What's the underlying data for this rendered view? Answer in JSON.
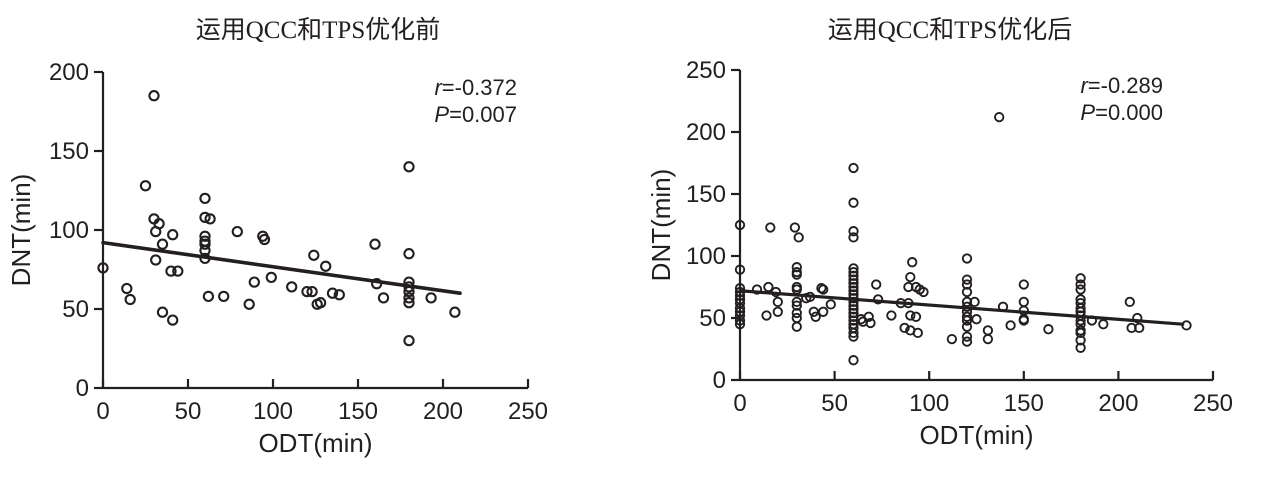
{
  "figure": {
    "background": "#ffffff",
    "ink_color": "#231f20"
  },
  "chart_data": [
    {
      "type": "scatter",
      "title": "运用QCC和TPS优化前",
      "xlabel": "ODT(min)",
      "ylabel": "DNT(min)",
      "xlim": [
        0,
        250
      ],
      "ylim": [
        0,
        200
      ],
      "xticks": [
        0,
        50,
        100,
        150,
        200,
        250
      ],
      "yticks": [
        0,
        50,
        100,
        150,
        200
      ],
      "grid": false,
      "legend_position": "none",
      "marker": "open-circle",
      "annotation": {
        "line1": "r=-0.372",
        "line2": "P=0.007"
      },
      "regression_line": {
        "x": [
          0,
          210
        ],
        "y": [
          92,
          60
        ]
      },
      "points": [
        [
          0,
          76
        ],
        [
          14,
          63
        ],
        [
          16,
          56
        ],
        [
          25,
          128
        ],
        [
          30,
          185
        ],
        [
          30,
          107
        ],
        [
          31,
          99
        ],
        [
          31,
          81
        ],
        [
          33,
          104
        ],
        [
          35,
          91
        ],
        [
          35,
          48
        ],
        [
          40,
          74
        ],
        [
          41,
          97
        ],
        [
          41,
          43
        ],
        [
          44,
          74
        ],
        [
          60,
          120
        ],
        [
          60,
          108
        ],
        [
          60,
          96
        ],
        [
          60,
          93
        ],
        [
          60,
          91
        ],
        [
          60,
          87
        ],
        [
          60,
          82
        ],
        [
          62,
          58
        ],
        [
          63,
          107
        ],
        [
          71,
          58
        ],
        [
          79,
          99
        ],
        [
          86,
          53
        ],
        [
          89,
          67
        ],
        [
          94,
          96
        ],
        [
          95,
          94
        ],
        [
          99,
          70
        ],
        [
          111,
          64
        ],
        [
          120,
          61
        ],
        [
          123,
          61
        ],
        [
          124,
          84
        ],
        [
          126,
          53
        ],
        [
          128,
          54
        ],
        [
          131,
          77
        ],
        [
          135,
          60
        ],
        [
          139,
          59
        ],
        [
          160,
          91
        ],
        [
          161,
          66
        ],
        [
          165,
          57
        ],
        [
          180,
          140
        ],
        [
          180,
          85
        ],
        [
          180,
          67
        ],
        [
          180,
          64
        ],
        [
          180,
          61
        ],
        [
          180,
          57
        ],
        [
          180,
          54
        ],
        [
          180,
          30
        ],
        [
          193,
          57
        ],
        [
          207,
          48
        ]
      ]
    },
    {
      "type": "scatter",
      "title": "运用QCC和TPS优化后",
      "xlabel": "ODT(min)",
      "ylabel": "DNT(min)",
      "xlim": [
        0,
        250
      ],
      "ylim": [
        0,
        250
      ],
      "xticks": [
        0,
        50,
        100,
        150,
        200,
        250
      ],
      "yticks": [
        0,
        50,
        100,
        150,
        200,
        250
      ],
      "grid": false,
      "legend_position": "none",
      "marker": "open-circle",
      "annotation": {
        "line1": "r=-0.289",
        "line2": "P=0.000"
      },
      "regression_line": {
        "x": [
          0,
          234
        ],
        "y": [
          72,
          45
        ]
      },
      "points": [
        [
          0,
          125
        ],
        [
          0,
          89
        ],
        [
          0,
          74
        ],
        [
          0,
          71
        ],
        [
          0,
          68
        ],
        [
          0,
          65
        ],
        [
          0,
          62
        ],
        [
          0,
          58
        ],
        [
          0,
          55
        ],
        [
          0,
          52
        ],
        [
          0,
          48
        ],
        [
          0,
          45
        ],
        [
          9,
          73
        ],
        [
          14,
          52
        ],
        [
          15,
          75
        ],
        [
          16,
          123
        ],
        [
          19,
          71
        ],
        [
          20,
          63
        ],
        [
          20,
          55
        ],
        [
          29,
          123
        ],
        [
          31,
          115
        ],
        [
          30,
          91
        ],
        [
          30,
          87
        ],
        [
          30,
          85
        ],
        [
          30,
          75
        ],
        [
          30,
          73
        ],
        [
          30,
          63
        ],
        [
          30,
          60
        ],
        [
          30,
          54
        ],
        [
          30,
          50
        ],
        [
          30,
          43
        ],
        [
          35,
          66
        ],
        [
          37,
          67
        ],
        [
          39,
          55
        ],
        [
          40,
          51
        ],
        [
          43,
          74
        ],
        [
          44,
          73
        ],
        [
          44,
          55
        ],
        [
          48,
          61
        ],
        [
          60,
          171
        ],
        [
          60,
          143
        ],
        [
          60,
          120
        ],
        [
          60,
          115
        ],
        [
          60,
          90
        ],
        [
          60,
          87
        ],
        [
          60,
          84
        ],
        [
          60,
          81
        ],
        [
          60,
          78
        ],
        [
          60,
          75
        ],
        [
          60,
          72
        ],
        [
          60,
          69
        ],
        [
          60,
          66
        ],
        [
          60,
          63
        ],
        [
          60,
          60
        ],
        [
          60,
          57
        ],
        [
          60,
          54
        ],
        [
          60,
          51
        ],
        [
          60,
          48
        ],
        [
          60,
          45
        ],
        [
          60,
          42
        ],
        [
          60,
          38
        ],
        [
          60,
          35
        ],
        [
          60,
          16
        ],
        [
          64,
          49
        ],
        [
          65,
          47
        ],
        [
          68,
          51
        ],
        [
          69,
          46
        ],
        [
          72,
          77
        ],
        [
          73,
          65
        ],
        [
          80,
          52
        ],
        [
          85,
          62
        ],
        [
          87,
          42
        ],
        [
          89,
          75
        ],
        [
          89,
          62
        ],
        [
          90,
          83
        ],
        [
          90,
          52
        ],
        [
          90,
          40
        ],
        [
          91,
          95
        ],
        [
          93,
          75
        ],
        [
          93,
          51
        ],
        [
          94,
          38
        ],
        [
          95,
          73
        ],
        [
          97,
          71
        ],
        [
          112,
          33
        ],
        [
          120,
          98
        ],
        [
          120,
          81
        ],
        [
          120,
          77
        ],
        [
          120,
          71
        ],
        [
          120,
          63
        ],
        [
          120,
          59
        ],
        [
          120,
          55
        ],
        [
          120,
          51
        ],
        [
          120,
          48
        ],
        [
          120,
          43
        ],
        [
          120,
          35
        ],
        [
          120,
          31
        ],
        [
          124,
          63
        ],
        [
          125,
          49
        ],
        [
          131,
          40
        ],
        [
          131,
          33
        ],
        [
          137,
          212
        ],
        [
          139,
          59
        ],
        [
          143,
          44
        ],
        [
          150,
          77
        ],
        [
          150,
          63
        ],
        [
          150,
          56
        ],
        [
          150,
          49
        ],
        [
          150,
          48
        ],
        [
          163,
          41
        ],
        [
          180,
          82
        ],
        [
          180,
          77
        ],
        [
          180,
          73
        ],
        [
          180,
          65
        ],
        [
          180,
          62
        ],
        [
          180,
          58
        ],
        [
          180,
          55
        ],
        [
          180,
          52
        ],
        [
          180,
          48
        ],
        [
          180,
          45
        ],
        [
          180,
          40
        ],
        [
          180,
          38
        ],
        [
          180,
          32
        ],
        [
          180,
          26
        ],
        [
          186,
          48
        ],
        [
          192,
          45
        ],
        [
          206,
          63
        ],
        [
          207,
          42
        ],
        [
          210,
          50
        ],
        [
          211,
          42
        ],
        [
          236,
          44
        ]
      ]
    }
  ]
}
